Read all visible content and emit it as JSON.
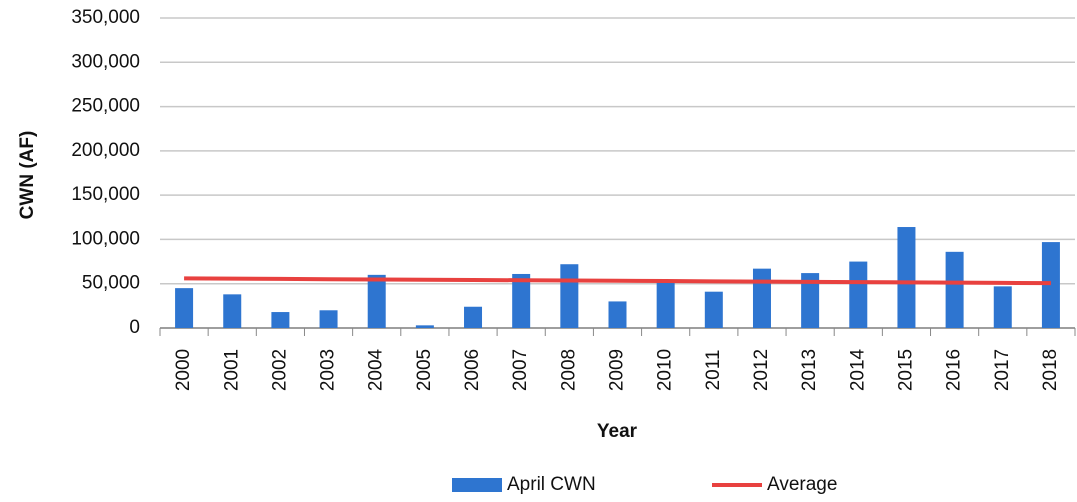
{
  "chart_data": {
    "type": "bar",
    "categories": [
      "2000",
      "2001",
      "2002",
      "2003",
      "2004",
      "2005",
      "2006",
      "2007",
      "2008",
      "2009",
      "2010",
      "2011",
      "2012",
      "2013",
      "2014",
      "2015",
      "2016",
      "2017",
      "2018"
    ],
    "series": [
      {
        "name": "April CWN",
        "color": "#2e75d0",
        "values": [
          45000,
          38000,
          18000,
          20000,
          60000,
          3000,
          24000,
          61000,
          72000,
          30000,
          52000,
          41000,
          67000,
          62000,
          75000,
          114000,
          86000,
          47000,
          97000
        ]
      },
      {
        "name": "Average",
        "type": "line",
        "color": "#e8413f",
        "values": [
          56000,
          55700,
          55400,
          55100,
          54800,
          54500,
          54200,
          53900,
          53600,
          53300,
          53000,
          52700,
          52400,
          52100,
          51800,
          51500,
          51200,
          50900,
          50600
        ]
      }
    ],
    "x_label": "Year",
    "y_label": "CWN (AF)",
    "ylim": [
      0,
      350000
    ],
    "yticks": [
      0,
      {
        "value": 50000,
        "label": "50,000"
      },
      {
        "value": 100000,
        "label": "100,000"
      },
      {
        "value": 150000,
        "label": "150,000"
      },
      {
        "value": 200000,
        "label": "200,000"
      },
      {
        "value": 250000,
        "label": "250,000"
      },
      {
        "value": 300000,
        "label": "300,000"
      },
      {
        "value": 350000,
        "label": "350,000"
      }
    ],
    "grid": true,
    "legend": "bottom"
  }
}
